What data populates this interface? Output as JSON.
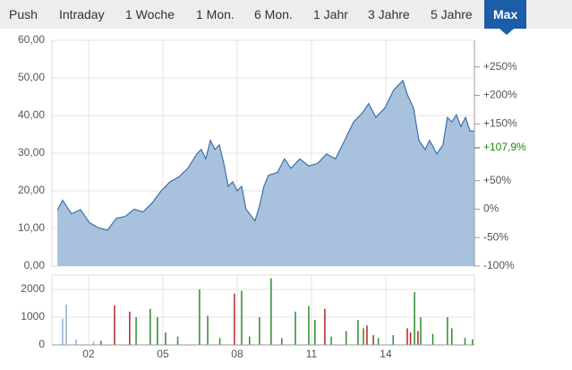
{
  "tabs": [
    "Push",
    "Intraday",
    "1 Woche",
    "1 Mon.",
    "6 Mon.",
    "1 Jahr",
    "3 Jahre",
    "5 Jahre",
    "Max"
  ],
  "active_tab": 8,
  "chart_data": [
    {
      "type": "area",
      "x": [
        0.74,
        0.95,
        1.31,
        1.67,
        2.04,
        2.4,
        2.76,
        3.12,
        3.48,
        3.84,
        4.2,
        4.57,
        4.93,
        5.29,
        5.65,
        6.01,
        6.37,
        6.55,
        6.73,
        6.92,
        7.1,
        7.28,
        7.46,
        7.64,
        7.82,
        8.0,
        8.18,
        8.36,
        8.72,
        8.9,
        9.08,
        9.26,
        9.63,
        9.91,
        10.17,
        10.53,
        10.89,
        11.25,
        11.61,
        11.97,
        12.34,
        12.7,
        13.06,
        13.31,
        13.6,
        13.96,
        14.32,
        14.69,
        14.87,
        15.12,
        15.34,
        15.59,
        15.77,
        16.06,
        16.31,
        16.49,
        16.67,
        16.85,
        17.03,
        17.22,
        17.4,
        17.58
      ],
      "series": [
        {
          "color": "#3d6fa6",
          "fill": "#a8c2de",
          "values": [
            14.9,
            17.5,
            13.9,
            15.0,
            11.5,
            10.2,
            9.5,
            12.7,
            13.2,
            15.1,
            14.4,
            16.8,
            20.0,
            22.4,
            23.7,
            26.0,
            29.8,
            31.0,
            28.5,
            33.4,
            31.0,
            32.2,
            27.3,
            21.2,
            22.4,
            20.0,
            21.2,
            15.1,
            12.0,
            15.9,
            21.2,
            24.1,
            24.9,
            28.5,
            26.0,
            28.5,
            26.6,
            27.3,
            29.8,
            28.5,
            33.4,
            38.3,
            40.7,
            43.2,
            39.5,
            42.0,
            46.8,
            49.3,
            45.6,
            42.0,
            33.4,
            31.0,
            33.4,
            29.8,
            32.2,
            39.5,
            38.3,
            40.2,
            37.1,
            39.5,
            35.9,
            35.9
          ]
        }
      ],
      "xlim": [
        0.52,
        17.58
      ],
      "ylim": [
        0,
        60
      ],
      "yticks": [
        {
          "value": 0,
          "label": "0,00"
        },
        {
          "value": 10,
          "label": "10,00"
        },
        {
          "value": 20,
          "label": "20,00"
        },
        {
          "value": 30,
          "label": "30,00"
        },
        {
          "value": 40,
          "label": "40,00"
        },
        {
          "value": 50,
          "label": "50,00"
        },
        {
          "value": 60,
          "label": "60,00"
        }
      ],
      "y2lim": [
        -100,
        296.8
      ],
      "y2ticks": [
        {
          "value": -100,
          "label": "-100%"
        },
        {
          "value": -50,
          "label": "-50%"
        },
        {
          "value": 0,
          "label": "0%"
        },
        {
          "value": 50,
          "label": "+50%"
        },
        {
          "value": 150,
          "label": "+150%"
        },
        {
          "value": 200,
          "label": "+200%"
        },
        {
          "value": 250,
          "label": "+250%"
        }
      ],
      "y2_marker": {
        "value": 107.9,
        "label": "+107,9%",
        "color": "#1a8a1a"
      },
      "grid": true
    },
    {
      "type": "bar",
      "series": [
        {
          "color": "#8fb0d8",
          "x": [
            0.95,
            1.1,
            1.5,
            2.2
          ],
          "values": [
            950,
            1450,
            200,
            120
          ]
        },
        {
          "color": "#b02424",
          "x": [
            3.05,
            3.66,
            7.89,
            11.54,
            13.24,
            14.87,
            15.0,
            15.3,
            13.5
          ],
          "values": [
            1420,
            1200,
            1850,
            1300,
            700,
            600,
            450,
            500,
            350
          ]
        },
        {
          "color": "#2e8b2e",
          "x": [
            2.5,
            3.92,
            4.49,
            4.78,
            5.11,
            5.6,
            6.48,
            6.81,
            7.3,
            8.18,
            8.5,
            8.9,
            9.37,
            9.8,
            10.35,
            10.89,
            11.14,
            11.8,
            12.4,
            12.88,
            13.1,
            13.7,
            14.3,
            15.16,
            15.41,
            15.9,
            16.49,
            16.67,
            17.2,
            17.5
          ],
          "values": [
            150,
            1000,
            1300,
            1000,
            450,
            300,
            2000,
            1050,
            250,
            1950,
            300,
            1000,
            2400,
            250,
            1200,
            1400,
            900,
            300,
            500,
            900,
            600,
            250,
            350,
            1900,
            1000,
            400,
            1000,
            600,
            250,
            200
          ]
        }
      ],
      "xlim": [
        0.52,
        17.58
      ],
      "ylim": [
        0,
        2516
      ],
      "yticks": [
        0,
        1000,
        2000
      ],
      "xticks": [
        {
          "value": 2,
          "label": "02"
        },
        {
          "value": 5,
          "label": "05"
        },
        {
          "value": 8,
          "label": "08"
        },
        {
          "value": 11,
          "label": "11"
        },
        {
          "value": 14,
          "label": "14"
        }
      ],
      "grid": true
    }
  ]
}
